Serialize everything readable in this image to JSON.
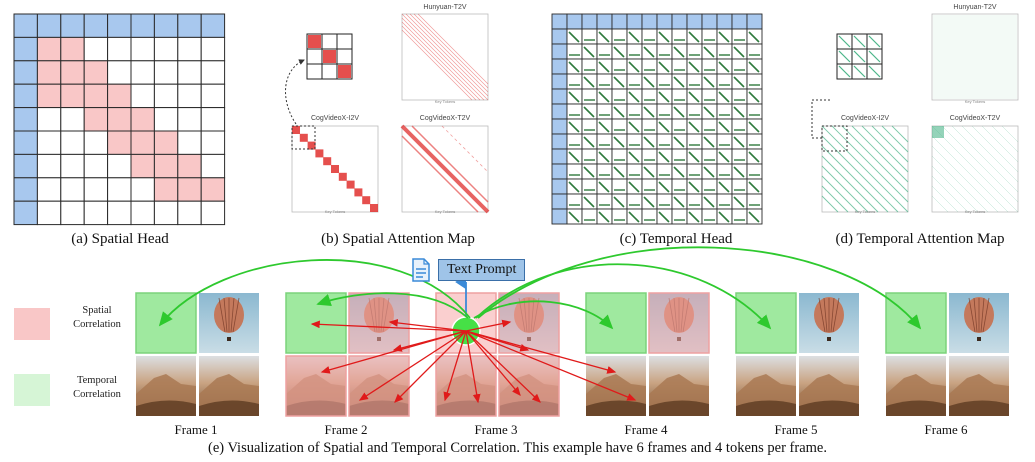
{
  "panel_a": {
    "caption": "(a) Spatial Head"
  },
  "panel_b": {
    "caption": "(b) Spatial Attention Map",
    "map_titles": [
      "Hunyuan-T2V",
      "CogVideoX-I2V",
      "CogVideoX-T2V"
    ]
  },
  "panel_c": {
    "caption": "(c) Temporal Head"
  },
  "panel_d": {
    "caption": "(d) Temporal Attention Map",
    "map_titles": [
      "Hunyuan-T2V",
      "CogVideoX-I2V",
      "CogVideoX-T2V"
    ]
  },
  "axis_texts": {
    "query": "Query Tokens",
    "key": "Key Tokens"
  },
  "legend": {
    "spatial": [
      "Spatial",
      "Correlation"
    ],
    "temporal": [
      "Temporal",
      "Correlation"
    ]
  },
  "text_prompt": "Text Prompt",
  "frames": [
    "Frame 1",
    "Frame 2",
    "Frame 3",
    "Frame 4",
    "Frame 5",
    "Frame 6"
  ],
  "panel_e": {
    "caption": "(e) Visualization of Spatial and Temporal Correlation. This example have 6 frames and 4 tokens per frame."
  },
  "colors": {
    "text_cell": "#a8c8ee",
    "spatial": "#f9c7c7",
    "temporal": "#d6f5d6",
    "temporal_line": "#2f7a3d",
    "attention_red": "#e0302e",
    "attention_green": "#4cb58a",
    "arrow_red": "#e01a1a",
    "arrow_green": "#2ec92e",
    "prompt_box": "#9fc4e8"
  }
}
